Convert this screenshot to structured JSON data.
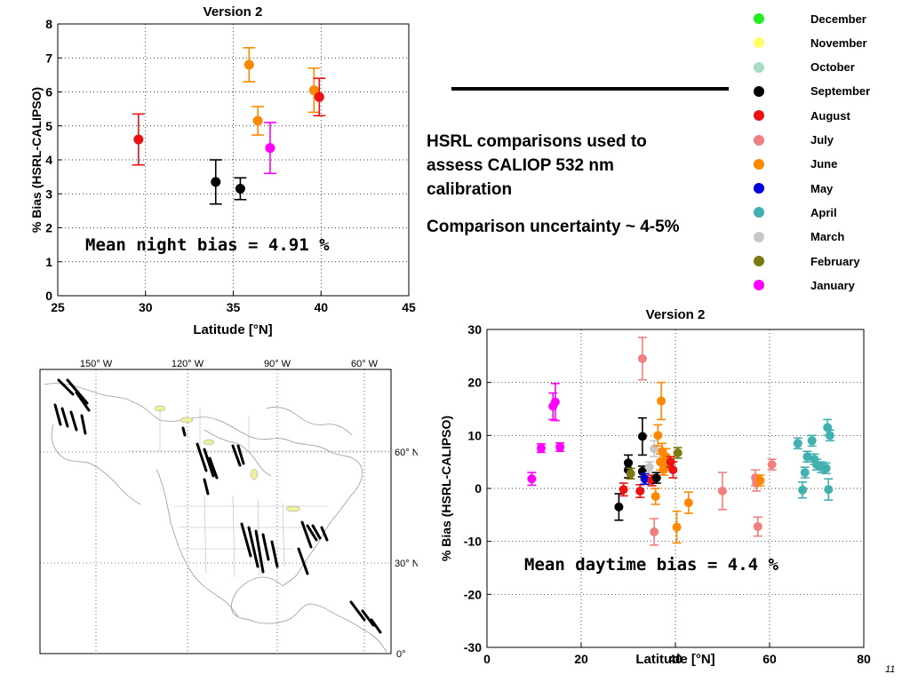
{
  "colors": {
    "December": "#22ee22",
    "November": "#ffff66",
    "October": "#a8dcc4",
    "September": "#000000",
    "August": "#ee1111",
    "July": "#f08080",
    "June": "#ff8800",
    "May": "#0000dd",
    "April": "#40b0b0",
    "March": "#c8c8c8",
    "February": "#7a7a10",
    "January": "#ff00ff"
  },
  "legend": {
    "items": [
      {
        "label": "December",
        "color": "#22ee22"
      },
      {
        "label": "November",
        "color": "#ffff66"
      },
      {
        "label": "October",
        "color": "#a8dcc4"
      },
      {
        "label": "September",
        "color": "#000000"
      },
      {
        "label": "August",
        "color": "#ee1111"
      },
      {
        "label": "July",
        "color": "#f08080"
      },
      {
        "label": "June",
        "color": "#ff8800"
      },
      {
        "label": "May",
        "color": "#0000dd"
      },
      {
        "label": "April",
        "color": "#40b0b0"
      },
      {
        "label": "March",
        "color": "#c8c8c8"
      },
      {
        "label": "February",
        "color": "#7a7a10"
      },
      {
        "label": "January",
        "color": "#ff00ff"
      }
    ]
  },
  "text": {
    "heading_line1": "HSRL comparisons used to",
    "heading_line2": "assess CALIOP 532 nm",
    "heading_line3": "calibration",
    "uncertainty": "Comparison uncertainty ~ 4-5%",
    "page_number": "11"
  },
  "map": {
    "lon_labels": [
      "150° W",
      "120° W",
      "90° W",
      "60° W"
    ],
    "lat_labels": [
      "60° N",
      "30° N",
      "0°"
    ]
  },
  "chart_data": [
    {
      "type": "scatter",
      "title": "Version 2",
      "xlabel": "Latitude [°N]",
      "ylabel": "% Bias (HSRL-CALIPSO)",
      "xlim": [
        25,
        45
      ],
      "ylim": [
        0,
        8
      ],
      "xticks": [
        25,
        30,
        35,
        40,
        45
      ],
      "yticks": [
        0,
        1,
        2,
        3,
        4,
        5,
        6,
        7,
        8
      ],
      "grid": true,
      "annotation": "Mean night bias = 4.91 %",
      "points": [
        {
          "x": 29.6,
          "y": 4.6,
          "err": 0.75,
          "month": "August"
        },
        {
          "x": 34.0,
          "y": 3.35,
          "err": 0.65,
          "month": "September"
        },
        {
          "x": 35.4,
          "y": 3.15,
          "err": 0.32,
          "month": "September"
        },
        {
          "x": 35.9,
          "y": 6.8,
          "err": 0.5,
          "month": "June"
        },
        {
          "x": 36.4,
          "y": 5.15,
          "err": 0.42,
          "month": "June"
        },
        {
          "x": 37.1,
          "y": 4.35,
          "err": 0.75,
          "month": "January"
        },
        {
          "x": 39.6,
          "y": 6.05,
          "err": 0.65,
          "month": "June"
        },
        {
          "x": 39.9,
          "y": 5.85,
          "err": 0.55,
          "month": "August"
        }
      ]
    },
    {
      "type": "scatter",
      "title": "Version 2",
      "xlabel": "Latitude [°N]",
      "ylabel": "% Bias (HSRL-CALIPSO)",
      "xlim": [
        0,
        80
      ],
      "ylim": [
        -30,
        30
      ],
      "xticks": [
        0,
        20,
        40,
        60,
        80
      ],
      "yticks": [
        -30,
        -20,
        -10,
        0,
        10,
        20,
        30
      ],
      "grid": true,
      "annotation": "Mean daytime bias = 4.4 %",
      "points": [
        {
          "x": 9.5,
          "y": 1.8,
          "err": 1.2,
          "month": "January"
        },
        {
          "x": 11.5,
          "y": 7.6,
          "err": 0.8,
          "month": "January"
        },
        {
          "x": 14.0,
          "y": 15.5,
          "err": 2.5,
          "month": "January"
        },
        {
          "x": 14.5,
          "y": 16.3,
          "err": 3.5,
          "month": "January"
        },
        {
          "x": 15.5,
          "y": 7.8,
          "err": 0.8,
          "month": "January"
        },
        {
          "x": 28.0,
          "y": -3.5,
          "err": 2.5,
          "month": "September"
        },
        {
          "x": 29.0,
          "y": -0.2,
          "err": 1.2,
          "month": "August"
        },
        {
          "x": 30.0,
          "y": 3.5,
          "err": 1.5,
          "month": "September"
        },
        {
          "x": 30.0,
          "y": 4.8,
          "err": 1.5,
          "month": "September"
        },
        {
          "x": 30.5,
          "y": 2.8,
          "err": 1.0,
          "month": "February"
        },
        {
          "x": 32.5,
          "y": -0.5,
          "err": 1.2,
          "month": "August"
        },
        {
          "x": 33.0,
          "y": 9.8,
          "err": 3.5,
          "month": "September"
        },
        {
          "x": 33.0,
          "y": 3.2,
          "err": 1.0,
          "month": "September"
        },
        {
          "x": 33.5,
          "y": 1.8,
          "err": 1.0,
          "month": "May"
        },
        {
          "x": 33.0,
          "y": 24.5,
          "err": 4.0,
          "month": "July"
        },
        {
          "x": 34.5,
          "y": 4.0,
          "err": 1.0,
          "month": "March"
        },
        {
          "x": 35.0,
          "y": 1.5,
          "err": 1.0,
          "month": "August"
        },
        {
          "x": 35.5,
          "y": 7.5,
          "err": 1.5,
          "month": "March"
        },
        {
          "x": 35.5,
          "y": -8.2,
          "err": 2.5,
          "month": "July"
        },
        {
          "x": 35.8,
          "y": -1.5,
          "err": 1.5,
          "month": "June"
        },
        {
          "x": 36.0,
          "y": 2.0,
          "err": 1.0,
          "month": "September"
        },
        {
          "x": 36.3,
          "y": 10.0,
          "err": 2.0,
          "month": "June"
        },
        {
          "x": 36.8,
          "y": 5.0,
          "err": 1.5,
          "month": "June"
        },
        {
          "x": 37.0,
          "y": 16.5,
          "err": 3.5,
          "month": "June"
        },
        {
          "x": 37.2,
          "y": 7.0,
          "err": 1.5,
          "month": "June"
        },
        {
          "x": 37.5,
          "y": 3.5,
          "err": 1.0,
          "month": "June"
        },
        {
          "x": 38.0,
          "y": 6.0,
          "err": 1.5,
          "month": "June"
        },
        {
          "x": 38.5,
          "y": 4.5,
          "err": 1.0,
          "month": "June"
        },
        {
          "x": 39.5,
          "y": 3.5,
          "err": 1.5,
          "month": "August"
        },
        {
          "x": 39.0,
          "y": 5.0,
          "err": 1.0,
          "month": "August"
        },
        {
          "x": 40.5,
          "y": 6.7,
          "err": 1.0,
          "month": "February"
        },
        {
          "x": 40.3,
          "y": -7.3,
          "err": 3.0,
          "month": "June"
        },
        {
          "x": 42.8,
          "y": -2.7,
          "err": 2.0,
          "month": "June"
        },
        {
          "x": 50.0,
          "y": -0.5,
          "err": 3.5,
          "month": "July"
        },
        {
          "x": 57.0,
          "y": 2.0,
          "err": 1.5,
          "month": "July"
        },
        {
          "x": 57.2,
          "y": 1.0,
          "err": 1.5,
          "month": "July"
        },
        {
          "x": 57.5,
          "y": -7.2,
          "err": 1.8,
          "month": "July"
        },
        {
          "x": 58.0,
          "y": 1.5,
          "err": 1.0,
          "month": "June"
        },
        {
          "x": 60.5,
          "y": 4.5,
          "err": 1.0,
          "month": "July"
        },
        {
          "x": 66.0,
          "y": 8.5,
          "err": 1.0,
          "month": "April"
        },
        {
          "x": 67.0,
          "y": -0.3,
          "err": 1.5,
          "month": "April"
        },
        {
          "x": 67.5,
          "y": 3.0,
          "err": 1.0,
          "month": "April"
        },
        {
          "x": 68.0,
          "y": 6.0,
          "err": 1.0,
          "month": "April"
        },
        {
          "x": 69.0,
          "y": 9.0,
          "err": 1.0,
          "month": "April"
        },
        {
          "x": 69.5,
          "y": 5.5,
          "err": 1.0,
          "month": "April"
        },
        {
          "x": 70.0,
          "y": 4.5,
          "err": 1.0,
          "month": "April"
        },
        {
          "x": 71.0,
          "y": 4.0,
          "err": 1.0,
          "month": "April"
        },
        {
          "x": 72.0,
          "y": 3.8,
          "err": 1.0,
          "month": "April"
        },
        {
          "x": 72.3,
          "y": 11.5,
          "err": 1.5,
          "month": "April"
        },
        {
          "x": 72.5,
          "y": -0.2,
          "err": 2.0,
          "month": "April"
        },
        {
          "x": 72.8,
          "y": 10.0,
          "err": 1.0,
          "month": "April"
        }
      ]
    }
  ]
}
